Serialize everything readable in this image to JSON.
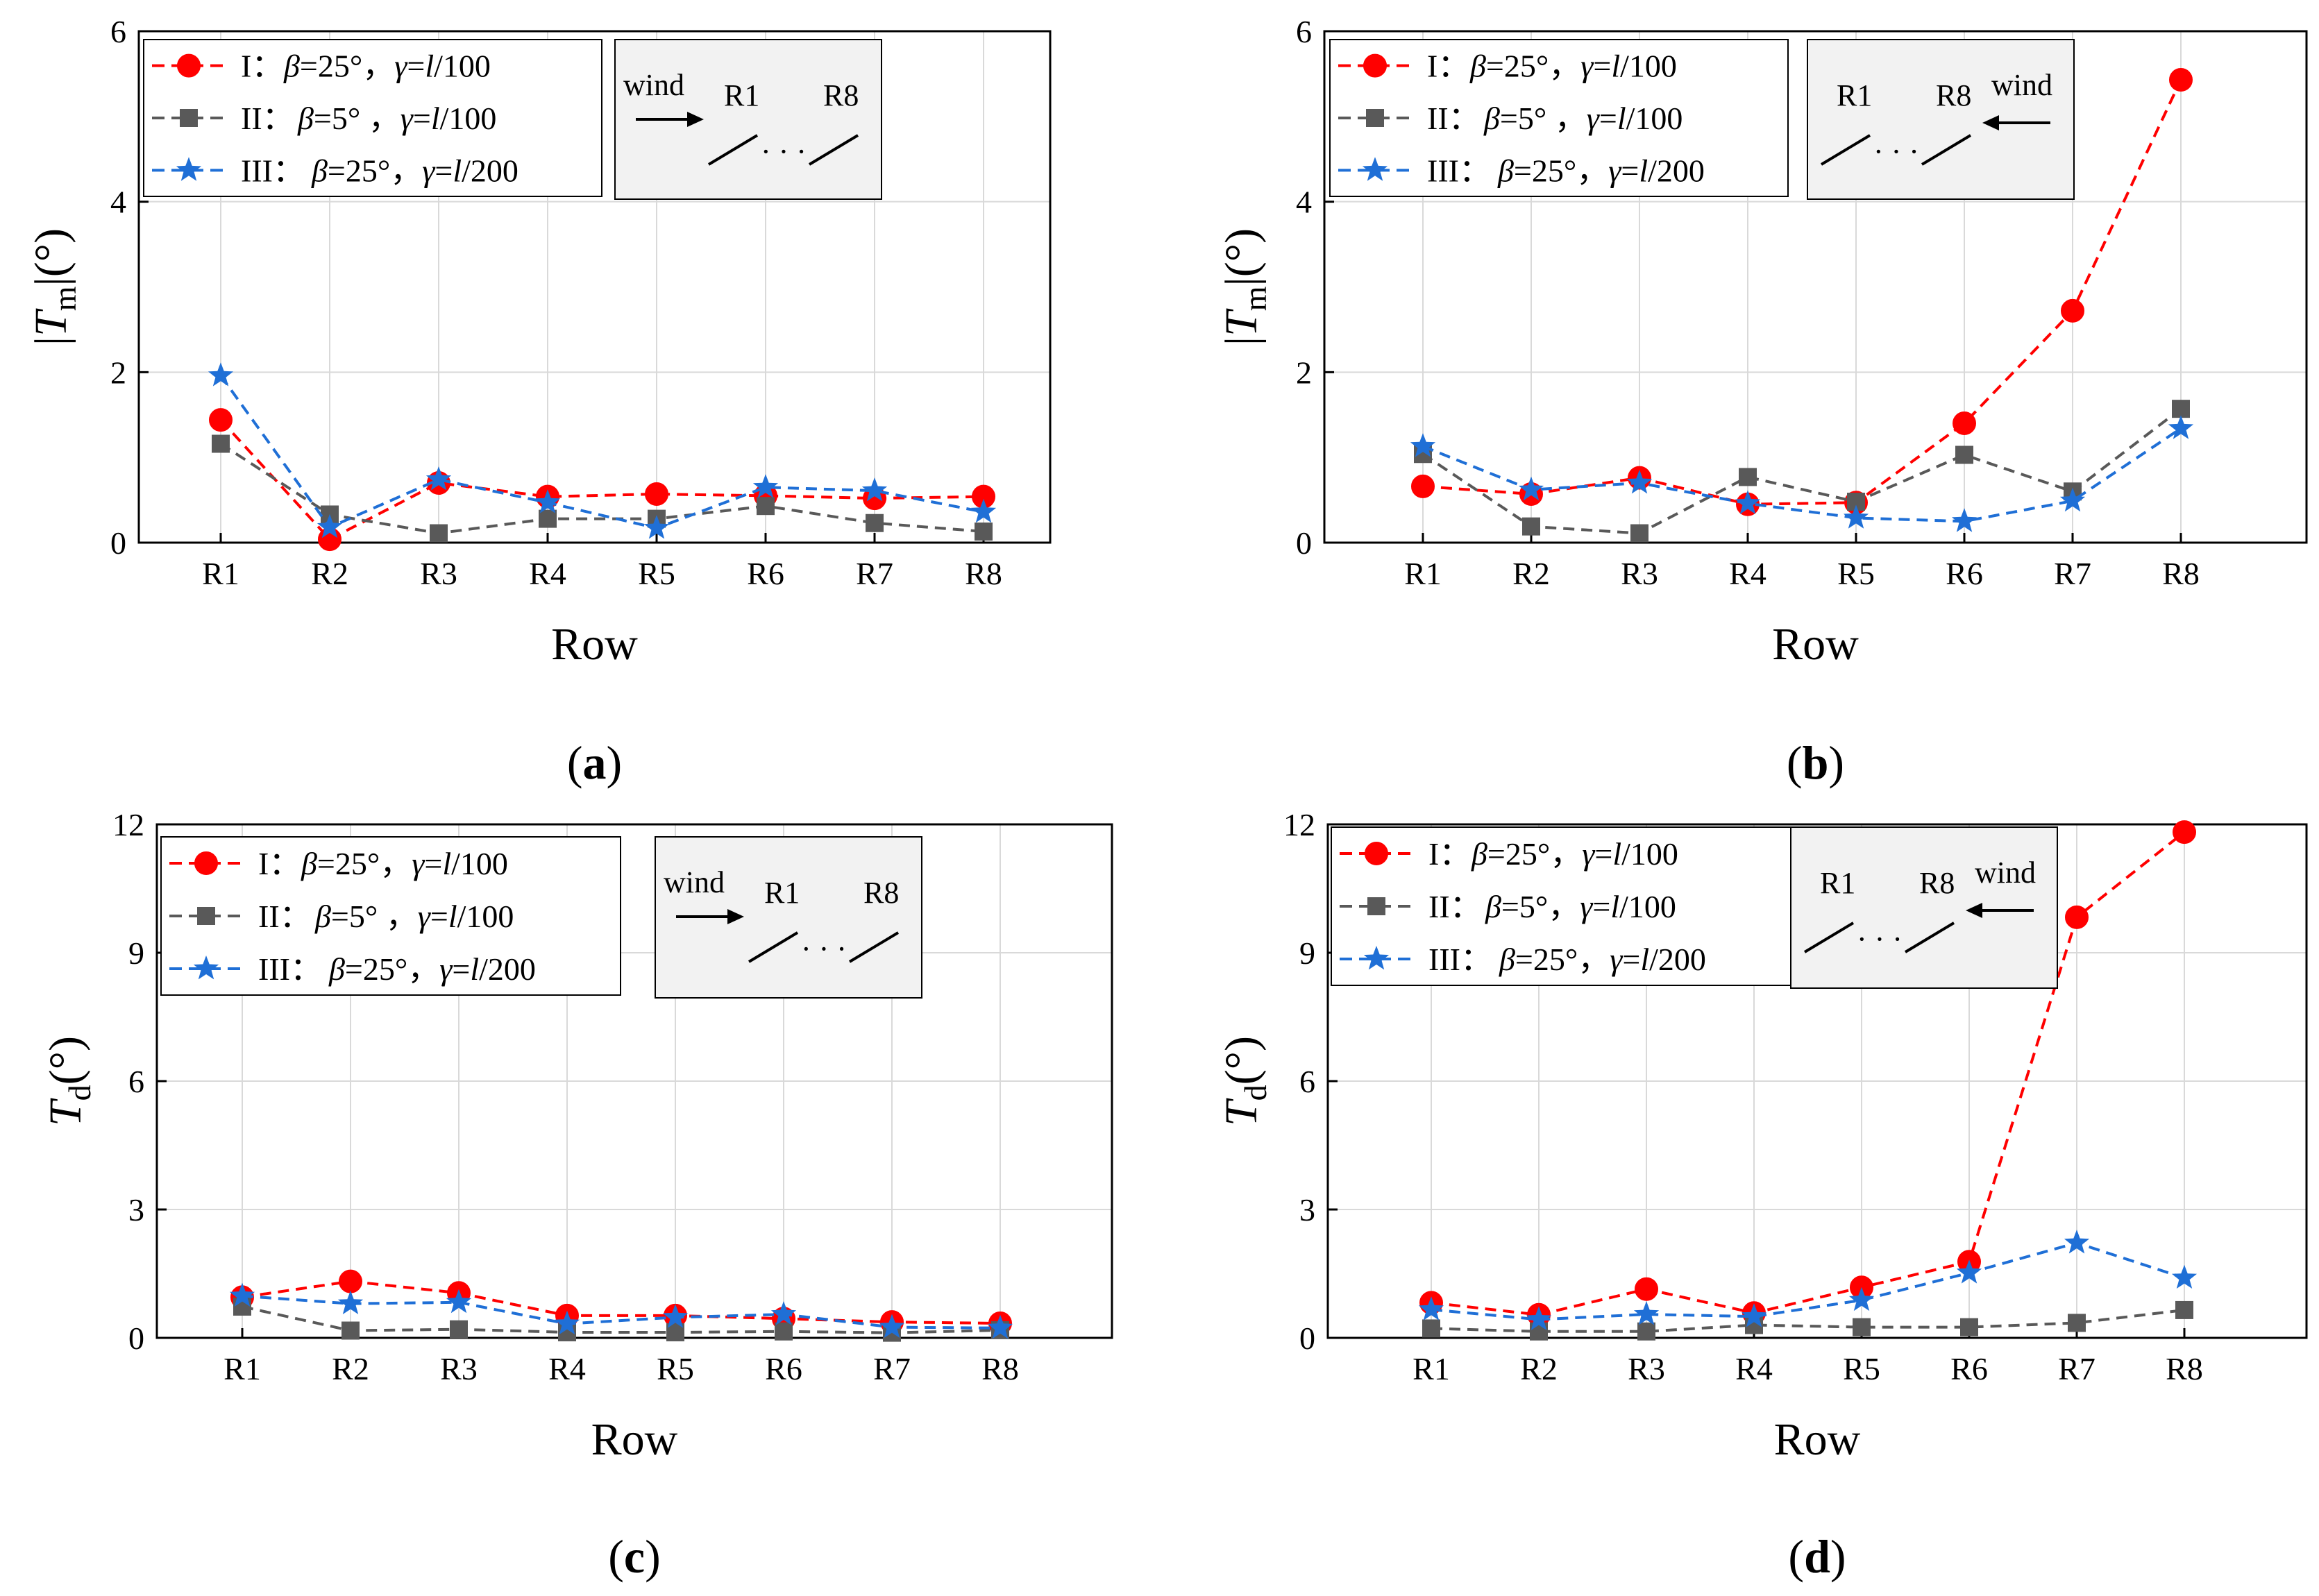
{
  "chart_data": [
    {
      "id": "a",
      "type": "line",
      "panel_label": "(a)",
      "ylabel_main": "|T",
      "ylabel_sub": "m",
      "ylabel_tail": "|(°)",
      "ylabel_italic": true,
      "ylabel_abs": true,
      "xlabel": "Row",
      "ylim": [
        0,
        6
      ],
      "yticks": [
        0,
        2,
        4,
        6
      ],
      "categories": [
        "R1",
        "R2",
        "R3",
        "R4",
        "R5",
        "R6",
        "R7",
        "R8"
      ],
      "wind": {
        "label": "wind",
        "first_row": "R1",
        "last_row": "R8",
        "dots": "· · ·",
        "direction": "right"
      },
      "series": [
        {
          "name": "I：β=25°，γ=l/100",
          "prefix": "I：",
          "params": "β=25°，γ=l/100",
          "color": "#ff0000",
          "marker": "circle",
          "values": [
            1.44,
            0.04,
            0.7,
            0.54,
            0.57,
            0.55,
            0.52,
            0.54
          ]
        },
        {
          "name": "II：β=5° ，γ=l/100",
          "prefix": "II：",
          "params": "β=5° ，γ=l/100",
          "color": "#595959",
          "marker": "square",
          "values": [
            1.16,
            0.33,
            0.11,
            0.28,
            0.28,
            0.43,
            0.23,
            0.13
          ]
        },
        {
          "name": "III：β=25°，γ=l/200",
          "prefix": "III：",
          "params": "β=25°，γ=l/200",
          "color": "#1f6fd6",
          "marker": "star",
          "values": [
            1.96,
            0.18,
            0.74,
            0.47,
            0.17,
            0.65,
            0.61,
            0.36
          ]
        }
      ]
    },
    {
      "id": "b",
      "type": "line",
      "panel_label": "(b)",
      "ylabel_main": "|T",
      "ylabel_sub": "m",
      "ylabel_tail": "|(°)",
      "xlabel": "Row",
      "ylim": [
        0,
        6
      ],
      "yticks": [
        0,
        2,
        4,
        6
      ],
      "categories": [
        "R1",
        "R2",
        "R3",
        "R4",
        "R5",
        "R6",
        "R7",
        "R8"
      ],
      "wind": {
        "label": "wind",
        "first_row": "R1",
        "last_row": "R8",
        "dots": "· · ·",
        "direction": "left"
      },
      "series": [
        {
          "name": "I：β=25°，γ=l/100",
          "prefix": "I：",
          "params": "β=25°，γ=l/100",
          "color": "#ff0000",
          "marker": "circle",
          "values": [
            0.66,
            0.57,
            0.76,
            0.45,
            0.47,
            1.4,
            2.72,
            5.43
          ]
        },
        {
          "name": "II：β=5° ，γ=l/100",
          "prefix": "II：",
          "params": "β=5° ，γ=l/100",
          "color": "#595959",
          "marker": "square",
          "values": [
            1.04,
            0.19,
            0.11,
            0.77,
            0.48,
            1.03,
            0.6,
            1.57
          ]
        },
        {
          "name": "III：β=25°，γ=l/200",
          "prefix": "III：",
          "params": "β=25°，γ=l/200",
          "color": "#1f6fd6",
          "marker": "star",
          "values": [
            1.13,
            0.62,
            0.7,
            0.46,
            0.29,
            0.25,
            0.49,
            1.34
          ]
        }
      ]
    },
    {
      "id": "c",
      "type": "line",
      "panel_label": "(c)",
      "ylabel_main": "T",
      "ylabel_sub": "d",
      "ylabel_tail": "(°)",
      "xlabel": "Row",
      "ylim": [
        0,
        12
      ],
      "yticks": [
        0,
        3,
        6,
        9,
        12
      ],
      "categories": [
        "R1",
        "R2",
        "R3",
        "R4",
        "R5",
        "R6",
        "R7",
        "R8"
      ],
      "wind": {
        "label": "wind",
        "first_row": "R1",
        "last_row": "R8",
        "dots": "· · ·",
        "direction": "right"
      },
      "series": [
        {
          "name": "I：β=25°，γ=l/100",
          "prefix": "I：",
          "params": "β=25°，γ=l/100",
          "color": "#ff0000",
          "marker": "circle",
          "values": [
            0.95,
            1.32,
            1.05,
            0.52,
            0.52,
            0.45,
            0.37,
            0.34
          ]
        },
        {
          "name": "II：β=5° ，γ=l/100",
          "prefix": "II：",
          "params": "β=5° ，γ=l/100",
          "color": "#595959",
          "marker": "square",
          "values": [
            0.73,
            0.17,
            0.2,
            0.13,
            0.13,
            0.15,
            0.12,
            0.18
          ]
        },
        {
          "name": "III：β=25°，γ=l/200",
          "prefix": "III：",
          "params": "β=25°，γ=l/200",
          "color": "#1f6fd6",
          "marker": "star",
          "values": [
            0.98,
            0.8,
            0.83,
            0.33,
            0.48,
            0.55,
            0.25,
            0.23
          ]
        }
      ]
    },
    {
      "id": "d",
      "type": "line",
      "panel_label": "(d)",
      "ylabel_main": "T",
      "ylabel_sub": "d",
      "ylabel_tail": "(°)",
      "xlabel": "Row",
      "ylim": [
        0,
        12
      ],
      "yticks": [
        0,
        3,
        6,
        9,
        12
      ],
      "categories": [
        "R1",
        "R2",
        "R3",
        "R4",
        "R5",
        "R6",
        "R7",
        "R8"
      ],
      "wind": {
        "label": "wind",
        "first_row": "R1",
        "last_row": "R8",
        "dots": "· · ·",
        "direction": "left"
      },
      "series": [
        {
          "name": "I：β=25°，γ=l/100",
          "prefix": "I：",
          "params": "β=25°，γ=l/100",
          "color": "#ff0000",
          "marker": "circle",
          "values": [
            0.82,
            0.54,
            1.14,
            0.58,
            1.18,
            1.78,
            9.83,
            11.82
          ]
        },
        {
          "name": "II：β=5°，γ=l/100",
          "prefix": "II：",
          "params": "β=5°，γ=l/100",
          "color": "#595959",
          "marker": "square",
          "values": [
            0.22,
            0.15,
            0.15,
            0.3,
            0.25,
            0.25,
            0.35,
            0.65
          ]
        },
        {
          "name": "III：β=25°，γ=l/200",
          "prefix": "III：",
          "params": "β=25°，γ=l/200",
          "color": "#1f6fd6",
          "marker": "star",
          "values": [
            0.66,
            0.43,
            0.55,
            0.5,
            0.88,
            1.52,
            2.22,
            1.4
          ]
        }
      ]
    }
  ]
}
